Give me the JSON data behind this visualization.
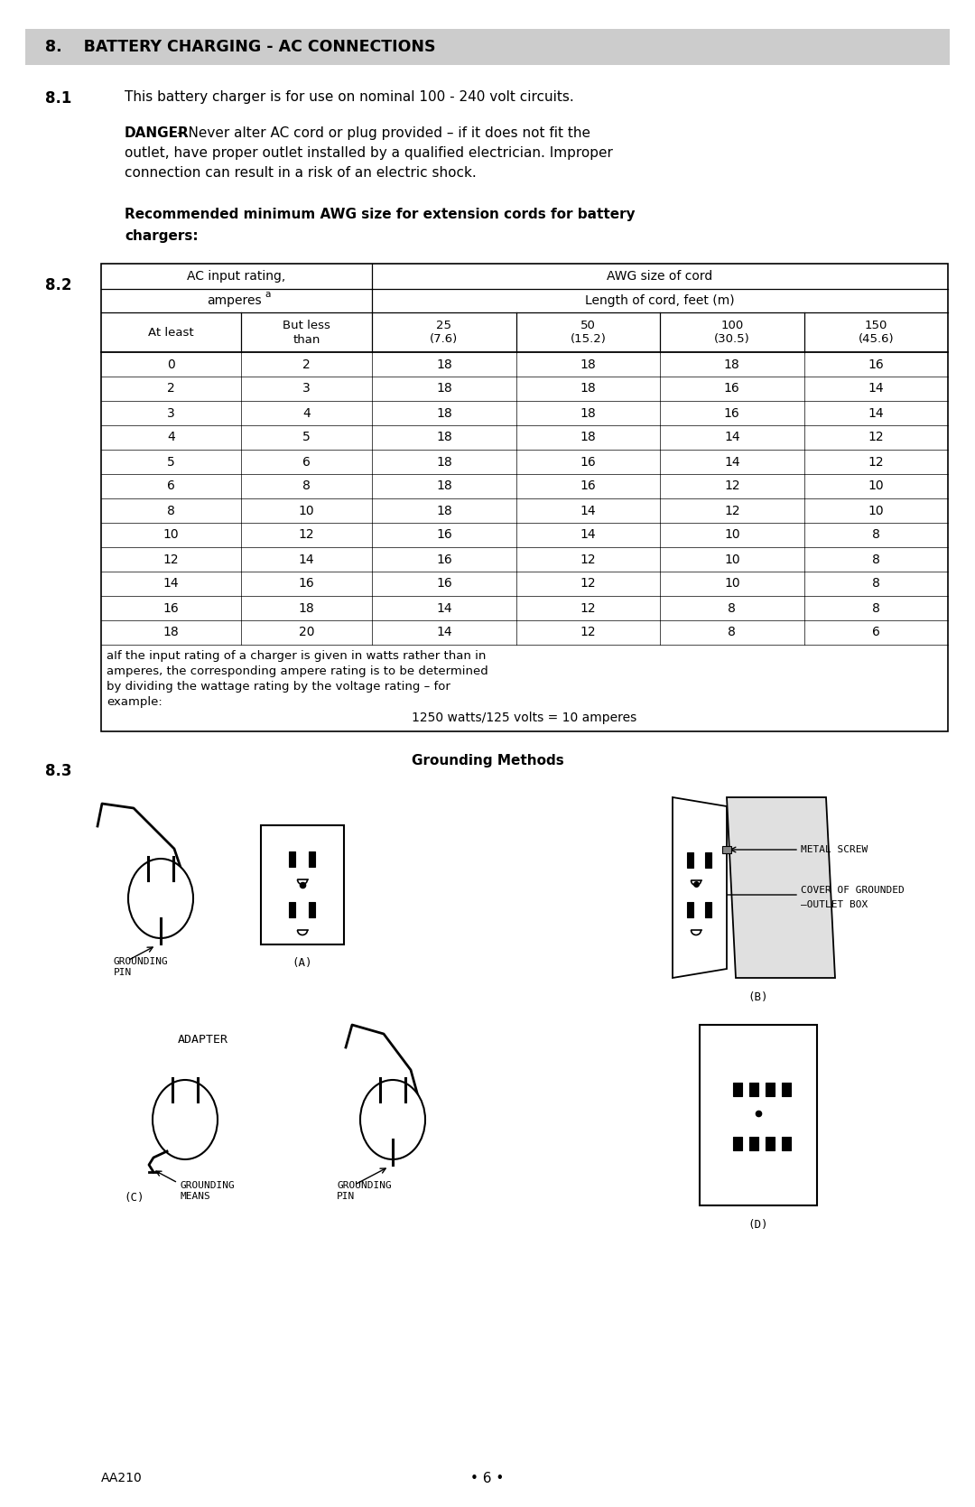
{
  "bg_color": "#ffffff",
  "section_header": "8.    BATTERY CHARGING - AC CONNECTIONS",
  "s81_label": "8.1",
  "s81_text1": "This battery charger is for use on nominal 100 - 240 volt circuits.",
  "s81_danger_bold": "DANGER",
  "s81_danger_text": " – Never alter AC cord or plug provided – if it does not fit the outlet, have proper outlet installed by a qualified electrician. Improper connection can result in a risk of an electric shock.",
  "s81_rec_text": "Recommended minimum AWG size for extension cords for battery chargers:",
  "s82_label": "8.2",
  "table_data": [
    [
      "0",
      "2",
      "18",
      "18",
      "18",
      "16"
    ],
    [
      "2",
      "3",
      "18",
      "18",
      "16",
      "14"
    ],
    [
      "3",
      "4",
      "18",
      "18",
      "16",
      "14"
    ],
    [
      "4",
      "5",
      "18",
      "18",
      "14",
      "12"
    ],
    [
      "5",
      "6",
      "18",
      "16",
      "14",
      "12"
    ],
    [
      "6",
      "8",
      "18",
      "16",
      "12",
      "10"
    ],
    [
      "8",
      "10",
      "18",
      "14",
      "12",
      "10"
    ],
    [
      "10",
      "12",
      "16",
      "14",
      "10",
      "8"
    ],
    [
      "12",
      "14",
      "16",
      "12",
      "10",
      "8"
    ],
    [
      "14",
      "16",
      "16",
      "12",
      "10",
      "8"
    ],
    [
      "16",
      "18",
      "14",
      "12",
      "8",
      "8"
    ],
    [
      "18",
      "20",
      "14",
      "12",
      "8",
      "6"
    ]
  ],
  "table_footnote_line1": "aIf the input rating of a charger is given in watts rather than in",
  "table_footnote_line2": "amperes, the corresponding ampere rating is to be determined",
  "table_footnote_line3": "by dividing the wattage rating by the voltage rating – for",
  "table_footnote_line4": "example:",
  "table_example": "1250 watts/125 volts = 10 amperes",
  "s83_label": "8.3",
  "grounding_title": "Grounding Methods",
  "footer_left": "AA210",
  "footer_center": "• 6 •"
}
